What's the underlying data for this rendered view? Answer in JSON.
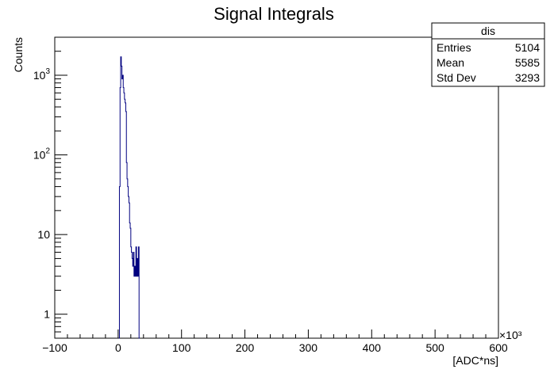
{
  "chart_data": {
    "type": "histogram",
    "title": "Signal Integrals",
    "xlabel": "[ADC*ns]",
    "ylabel": "Counts",
    "x_multiplier": "×10³",
    "x_unit_scale": 1000,
    "xlim": [
      -100,
      600
    ],
    "ylim": [
      0.5,
      3000
    ],
    "y_scale": "log",
    "grid": false,
    "x_ticks": [
      {
        "value": -100,
        "label": "−100"
      },
      {
        "value": 0,
        "label": "0"
      },
      {
        "value": 100,
        "label": "100"
      },
      {
        "value": 200,
        "label": "200"
      },
      {
        "value": 300,
        "label": "300"
      },
      {
        "value": 400,
        "label": "400"
      },
      {
        "value": 500,
        "label": "500"
      },
      {
        "value": 600,
        "label": "600"
      }
    ],
    "y_ticks": [
      {
        "value": 1,
        "base": "1",
        "exp": ""
      },
      {
        "value": 10,
        "base": "10",
        "exp": ""
      },
      {
        "value": 100,
        "base": "10",
        "exp": "2"
      },
      {
        "value": 1000,
        "base": "10",
        "exp": "3"
      }
    ],
    "bin_width": 1,
    "bins": [
      [
        1,
        0.3
      ],
      [
        2,
        40
      ],
      [
        3,
        700
      ],
      [
        4,
        1700
      ],
      [
        5,
        1300
      ],
      [
        6,
        900
      ],
      [
        7,
        1000
      ],
      [
        8,
        700
      ],
      [
        9,
        600
      ],
      [
        10,
        500
      ],
      [
        11,
        450
      ],
      [
        12,
        350
      ],
      [
        13,
        80
      ],
      [
        14,
        50
      ],
      [
        15,
        40
      ],
      [
        16,
        30
      ],
      [
        17,
        25
      ],
      [
        18,
        14
      ],
      [
        19,
        12
      ],
      [
        20,
        7
      ],
      [
        21,
        6
      ],
      [
        22,
        5
      ],
      [
        23,
        4
      ],
      [
        24,
        6
      ],
      [
        25,
        3
      ],
      [
        26,
        4
      ],
      [
        27,
        3
      ],
      [
        28,
        7
      ],
      [
        29,
        3
      ],
      [
        30,
        5
      ],
      [
        31,
        3
      ],
      [
        32,
        7
      ],
      [
        33,
        0.3
      ]
    ],
    "series": [
      {
        "name": "dis"
      }
    ],
    "legend": {
      "placement": "top-right",
      "title": "dis",
      "rows": [
        {
          "label": "Entries",
          "value": "5104"
        },
        {
          "label": "Mean",
          "value": "5585"
        },
        {
          "label": "Std Dev",
          "value": "3293"
        }
      ]
    },
    "colors": {
      "line": "#000080",
      "axis": "#000000"
    }
  }
}
